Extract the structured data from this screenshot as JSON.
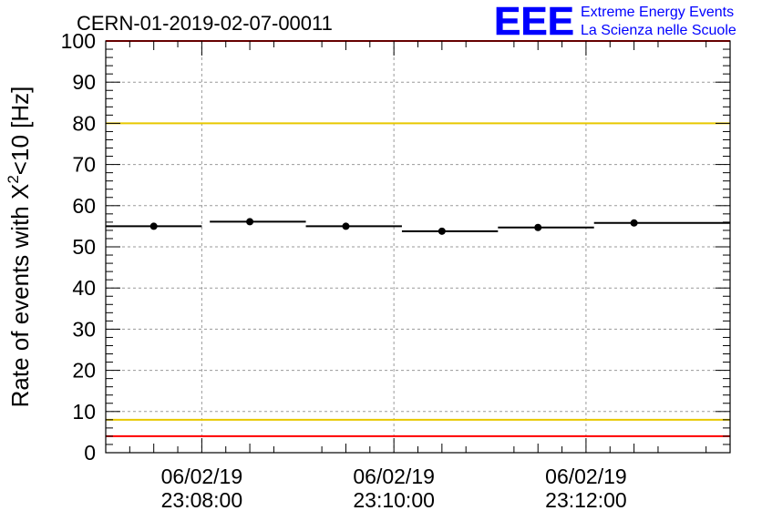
{
  "chart_data": {
    "type": "scatter",
    "title": "CERN-01-2019-02-07-00011",
    "ylabel": "Rate of events with X",
    "ylabel_sup": "2",
    "ylabel_tail": "<10 [Hz]",
    "ylim": [
      0,
      100
    ],
    "yticks": [
      0,
      10,
      20,
      30,
      40,
      50,
      60,
      70,
      80,
      90,
      100
    ],
    "xlim": [
      "2019-02-06T23:07:00",
      "2019-02-06T23:13:30"
    ],
    "xticks": [
      {
        "t": "2019-02-06T23:08:00",
        "date": "06/02/19",
        "time": "23:08:00"
      },
      {
        "t": "2019-02-06T23:10:00",
        "date": "06/02/19",
        "time": "23:10:00"
      },
      {
        "t": "2019-02-06T23:12:00",
        "date": "06/02/19",
        "time": "23:12:00"
      }
    ],
    "grid": true,
    "series": [
      {
        "points": [
          {
            "x": "2019-02-06T23:07:30",
            "x_start": "2019-02-06T23:07:00",
            "x_end": "2019-02-06T23:08:00",
            "y": 55.0
          },
          {
            "x": "2019-02-06T23:08:30",
            "x_start": "2019-02-06T23:08:05",
            "x_end": "2019-02-06T23:09:05",
            "y": 56.1
          },
          {
            "x": "2019-02-06T23:09:30",
            "x_start": "2019-02-06T23:09:05",
            "x_end": "2019-02-06T23:10:05",
            "y": 55.0
          },
          {
            "x": "2019-02-06T23:10:30",
            "x_start": "2019-02-06T23:10:05",
            "x_end": "2019-02-06T23:11:05",
            "y": 53.8
          },
          {
            "x": "2019-02-06T23:11:30",
            "x_start": "2019-02-06T23:11:05",
            "x_end": "2019-02-06T23:12:05",
            "y": 54.7
          },
          {
            "x": "2019-02-06T23:12:30",
            "x_start": "2019-02-06T23:12:05",
            "x_end": "2019-02-06T23:13:30",
            "y": 55.8
          }
        ]
      }
    ],
    "reference_lines": [
      {
        "y": 100,
        "color": "#ff0000"
      },
      {
        "y": 80,
        "color": "#e8c800"
      },
      {
        "y": 8,
        "color": "#e8c800"
      },
      {
        "y": 4,
        "color": "#ff0000"
      }
    ]
  },
  "logo": {
    "text": "EEE",
    "line1": "Extreme Energy Events",
    "line2": "La Scienza nelle Scuole",
    "color": "#0000ff"
  }
}
